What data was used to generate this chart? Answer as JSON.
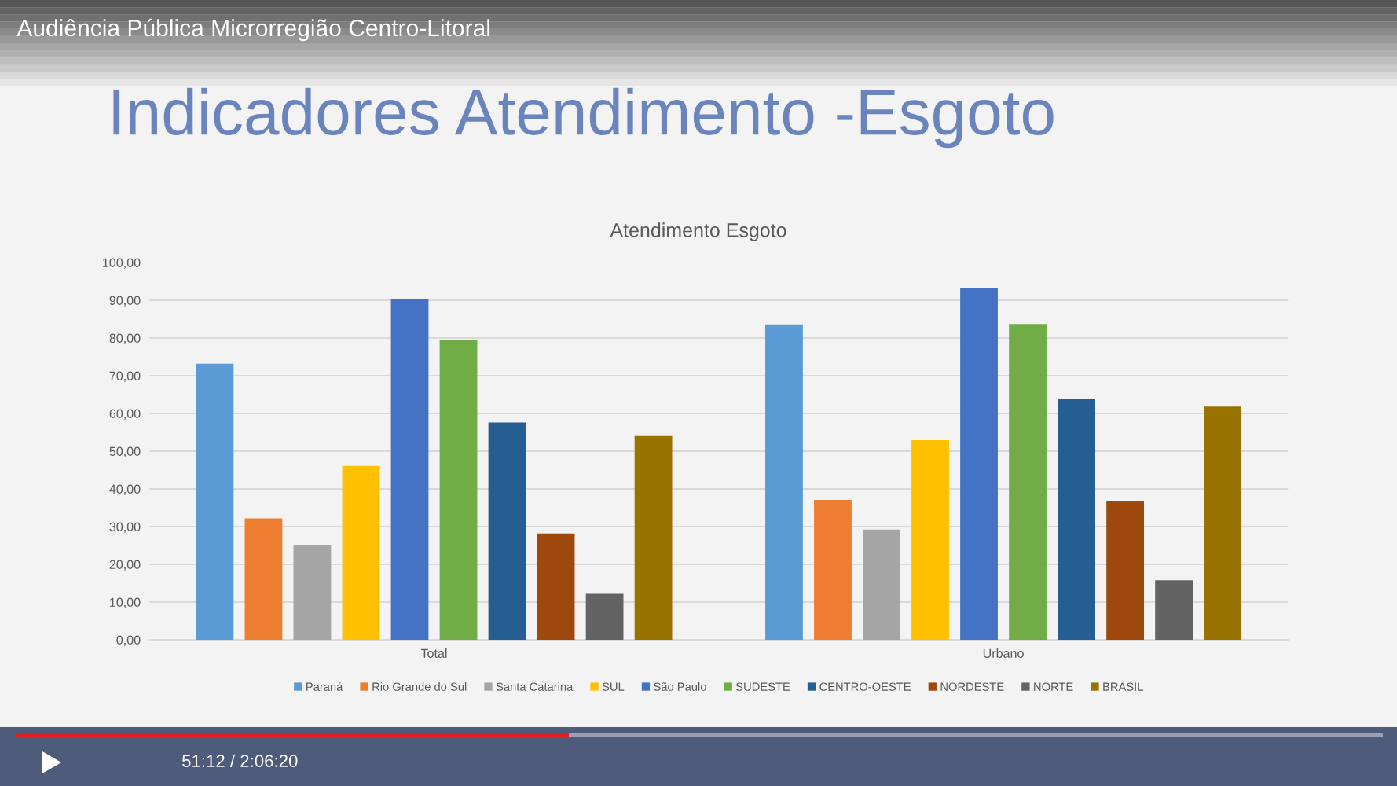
{
  "chart_data": {
    "type": "bar",
    "title": "Indicadores Atendimento -Esgoto",
    "subtitle": "Atendimento Esgoto",
    "annotations": [
      "Audiência Pública Microrregião Centro-Litoral",
      "51:12 / 2:06:20"
    ],
    "categories": [
      "Total",
      "Urbano"
    ],
    "series": [
      {
        "name": "Paraná",
        "color": "#5b9bd5",
        "values": [
          73.2,
          83.6
        ]
      },
      {
        "name": "Rio Grande do Sul",
        "color": "#ed7d31",
        "values": [
          32.2,
          37.1
        ]
      },
      {
        "name": "Santa Catarina",
        "color": "#a5a5a5",
        "values": [
          25.0,
          29.2
        ]
      },
      {
        "name": "SUL",
        "color": "#ffc000",
        "values": [
          46.1,
          52.9
        ]
      },
      {
        "name": "São Paulo",
        "color": "#4472c4",
        "values": [
          90.3,
          93.1
        ]
      },
      {
        "name": "SUDESTE",
        "color": "#70ad47",
        "values": [
          79.6,
          83.7
        ]
      },
      {
        "name": "CENTRO-OESTE",
        "color": "#255e91",
        "values": [
          57.6,
          63.8
        ]
      },
      {
        "name": "NORDESTE",
        "color": "#9e480e",
        "values": [
          28.2,
          36.7
        ]
      },
      {
        "name": "NORTE",
        "color": "#636363",
        "values": [
          12.2,
          15.8
        ]
      },
      {
        "name": "BRASIL",
        "color": "#997300",
        "values": [
          54.0,
          61.8
        ]
      }
    ],
    "ylim": [
      0,
      100
    ],
    "yticks": [
      {
        "value": 0,
        "label": "0,00"
      },
      {
        "value": 10,
        "label": "10,00"
      },
      {
        "value": 20,
        "label": "20,00"
      },
      {
        "value": 30,
        "label": "30,00"
      },
      {
        "value": 40,
        "label": "40,00"
      },
      {
        "value": 50,
        "label": "50,00"
      },
      {
        "value": 60,
        "label": "60,00"
      },
      {
        "value": 70,
        "label": "70,00"
      },
      {
        "value": 80,
        "label": "80,00"
      },
      {
        "value": 90,
        "label": "90,00"
      },
      {
        "value": 100,
        "label": "100,00"
      }
    ],
    "grid": "y",
    "legend": "bottom"
  }
}
